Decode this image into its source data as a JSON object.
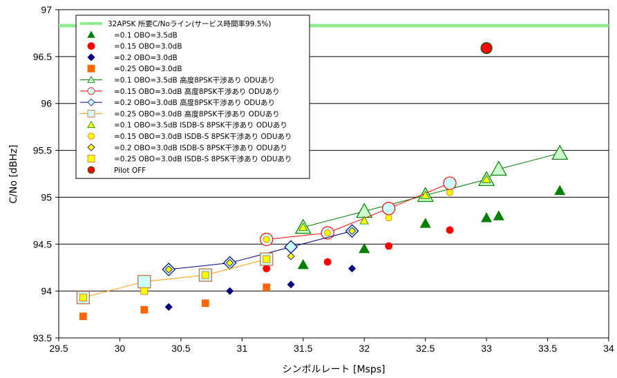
{
  "chart_data": {
    "type": "scatter",
    "xlabel": "シンボルレート [Msps]",
    "ylabel": "C/No [dBHz]",
    "xlim": [
      29.5,
      34
    ],
    "ylim": [
      93.5,
      97
    ],
    "x_ticks": [
      "29.5",
      "30",
      "30.5",
      "31",
      "31.5",
      "32",
      "32.5",
      "33",
      "33.5",
      "34"
    ],
    "y_ticks": [
      "93.5",
      "94",
      "94.5",
      "95",
      "95.5",
      "96",
      "96.5",
      "97"
    ],
    "grid": "horizontal",
    "legend_position": "top-left",
    "reference_line": {
      "name": "32APSK 所要C/Noライン(サービス時間率99.5%)",
      "y": 96.83,
      "color": "#90EE90"
    },
    "series": [
      {
        "name": "=0.1  OBO=3.5dB",
        "marker": "triangle",
        "size": 7,
        "fill": "#008000",
        "stroke": "#008000",
        "line": null,
        "points": [
          [
            31.5,
            94.28
          ],
          [
            32.0,
            94.45
          ],
          [
            32.5,
            94.72
          ],
          [
            33.0,
            94.78
          ],
          [
            33.1,
            94.8
          ],
          [
            33.6,
            95.07
          ]
        ]
      },
      {
        "name": "=0.15  OBO=3.0dB",
        "marker": "circle",
        "size": 5,
        "fill": "#FF0000",
        "stroke": "#FF0000",
        "line": null,
        "points": [
          [
            31.2,
            94.24
          ],
          [
            31.7,
            94.31
          ],
          [
            32.2,
            94.48
          ],
          [
            32.7,
            94.65
          ]
        ]
      },
      {
        "name": "=0.2  OBO=3.0dB",
        "marker": "diamond",
        "size": 5,
        "fill": "#000080",
        "stroke": "#000080",
        "line": null,
        "points": [
          [
            30.4,
            93.83
          ],
          [
            30.9,
            94.0
          ],
          [
            31.4,
            94.07
          ],
          [
            31.9,
            94.24
          ]
        ]
      },
      {
        "name": "=0.25  OBO=3.0dB",
        "marker": "square",
        "size": 5,
        "fill": "#FF6600",
        "stroke": "#FF6600",
        "line": null,
        "points": [
          [
            29.7,
            93.73
          ],
          [
            30.2,
            93.8
          ],
          [
            30.7,
            93.87
          ],
          [
            31.2,
            94.04
          ]
        ]
      },
      {
        "name": "=0.1  OBO=3.5dB 高度8PSK干渉あり ODUあり",
        "marker": "triangle",
        "size": 11,
        "fill": "#CCFFCC",
        "stroke": "#008000",
        "line": "#008000",
        "points": [
          [
            31.5,
            94.68
          ],
          [
            32.0,
            94.85
          ],
          [
            32.5,
            95.02
          ],
          [
            33.0,
            95.19
          ],
          [
            33.1,
            95.3
          ],
          [
            33.6,
            95.47
          ]
        ]
      },
      {
        "name": "=0.15  OBO=3.0dB 高度8PSK干渉あり ODUあり",
        "marker": "circle",
        "size": 9,
        "fill": "#CCFFFF",
        "stroke": "#FF0000",
        "line": "#FF0000",
        "points": [
          [
            31.2,
            94.55
          ],
          [
            31.7,
            94.62
          ],
          [
            32.2,
            94.88
          ],
          [
            32.7,
            95.15
          ]
        ]
      },
      {
        "name": "=0.2  OBO=3.0dB 高度8PSK干渉あり ODUあり",
        "marker": "diamond",
        "size": 9,
        "fill": "#CCFFFF",
        "stroke": "#000080",
        "line": "#000080",
        "points": [
          [
            30.4,
            94.23
          ],
          [
            30.9,
            94.3
          ],
          [
            31.4,
            94.47
          ],
          [
            31.9,
            94.64
          ]
        ]
      },
      {
        "name": "=0.25  OBO=3.0dB 高度8PSK干渉あり ODUあり",
        "marker": "square",
        "size": 9,
        "fill": "#CCFFFF",
        "stroke": "#CC6633",
        "line": "#FF9900",
        "points": [
          [
            29.7,
            93.93
          ],
          [
            30.2,
            94.1
          ],
          [
            30.7,
            94.17
          ],
          [
            31.2,
            94.34
          ]
        ]
      },
      {
        "name": "=0.1  OBO=3.5dB ISDB-S 8PSK干渉あり ODUあり",
        "marker": "triangle",
        "size": 6,
        "fill": "#FFFF00",
        "stroke": "#008000",
        "line": null,
        "points": [
          [
            31.5,
            94.68
          ],
          [
            32.0,
            94.75
          ],
          [
            32.5,
            95.02
          ],
          [
            33.0,
            95.19
          ]
        ]
      },
      {
        "name": "=0.15 OBO=3.0dB ISDB-S 8PSK干渉あり ODUあり",
        "marker": "circle",
        "size": 4.5,
        "fill": "#FFFF00",
        "stroke": "#FF6600",
        "line": null,
        "points": [
          [
            31.2,
            94.55
          ],
          [
            31.7,
            94.62
          ],
          [
            32.2,
            94.78
          ],
          [
            32.7,
            95.05
          ]
        ]
      },
      {
        "name": "=0.2  OBO=3.0dB ISDB-S 8PSK干渉あり ODUあり",
        "marker": "diamond",
        "size": 5,
        "fill": "#FFFF00",
        "stroke": "#000080",
        "line": null,
        "points": [
          [
            30.4,
            94.23
          ],
          [
            30.9,
            94.3
          ],
          [
            31.4,
            94.37
          ],
          [
            31.9,
            94.64
          ]
        ]
      },
      {
        "name": "=0.25 OBO=3.0dB ISDB-S 8PSK干渉あり ODUあり",
        "marker": "square",
        "size": 5,
        "fill": "#FFFF00",
        "stroke": "#CC6633",
        "line": null,
        "points": [
          [
            29.7,
            93.93
          ],
          [
            30.2,
            94.0
          ],
          [
            30.7,
            94.17
          ],
          [
            31.2,
            94.34
          ]
        ]
      },
      {
        "name": "Pilot OFF",
        "marker": "circle",
        "size": 8,
        "fill": "#FF0000",
        "stroke": "#006600",
        "line": null,
        "points": [
          [
            33.0,
            96.59
          ]
        ]
      }
    ]
  }
}
